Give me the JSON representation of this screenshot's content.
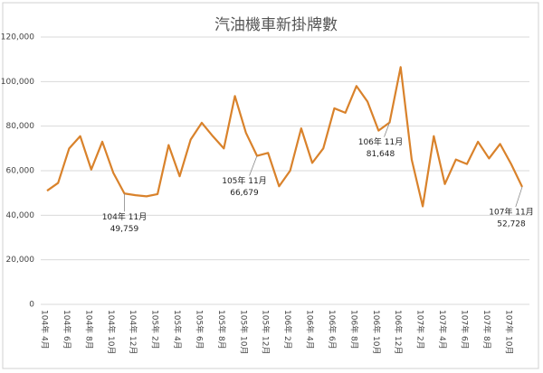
{
  "chart_data": {
    "type": "line",
    "title": "汽油機車新掛牌數",
    "categories": [
      "104年 4月",
      null,
      "104年 6月",
      null,
      "104年 8月",
      null,
      "104年 10月",
      null,
      "104年 12月",
      null,
      "105年 2月",
      null,
      "105年 4月",
      null,
      "105年 6月",
      null,
      "105年 8月",
      null,
      "105年 10月",
      null,
      "105年 12月",
      null,
      "106年 2月",
      null,
      "106年 4月",
      null,
      "106年 6月",
      null,
      "106年 8月",
      null,
      "106年 10月",
      null,
      "106年 12月",
      null,
      "107年 2月",
      null,
      "107年 4月",
      null,
      "107年 6月",
      null,
      "107年 8月",
      null,
      "107年 10月",
      null
    ],
    "series": [
      {
        "name": "汽油機車新掛牌數",
        "color": "#d9822b",
        "values": [
          51000,
          54500,
          70000,
          75500,
          60500,
          73000,
          59000,
          49759,
          49000,
          48500,
          49500,
          71500,
          57500,
          74000,
          81500,
          75500,
          70000,
          93500,
          77000,
          66679,
          68000,
          53000,
          60000,
          79000,
          63500,
          70000,
          88000,
          86000,
          98000,
          91000,
          78000,
          81648,
          106500,
          65000,
          44000,
          75500,
          54000,
          65000,
          63000,
          73000,
          65500,
          72000,
          63000,
          52728
        ]
      }
    ],
    "annotations": [
      {
        "index": 7,
        "text": "104年 11月",
        "value_label": "49,759"
      },
      {
        "index": 19,
        "text": "105年 11月",
        "value_label": "66,679"
      },
      {
        "index": 31,
        "text": "106年 11月",
        "value_label": "81,648"
      },
      {
        "index": 43,
        "text": "107年 11月",
        "value_label": "52,728"
      }
    ],
    "ylim": [
      0,
      120000
    ],
    "yticks": [
      0,
      {
        "value": 20000,
        "label": "20,000"
      },
      {
        "value": 40000,
        "label": "40,000"
      },
      {
        "value": 60000,
        "label": "60,000"
      },
      {
        "value": 80000,
        "label": "80,000"
      },
      {
        "value": 100000,
        "label": "100,000"
      },
      {
        "value": 120000,
        "label": "120,000"
      }
    ],
    "grid": true
  }
}
